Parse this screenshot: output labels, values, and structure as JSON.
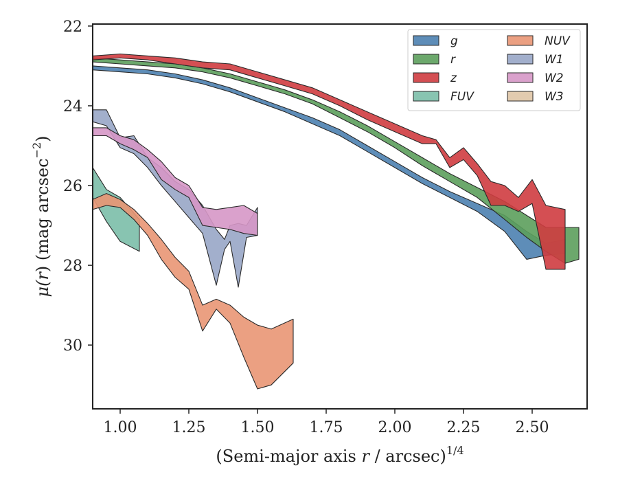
{
  "chart_data": {
    "type": "area",
    "xlabel": "(Semi-major axis r / arcsec)^{1/4}",
    "xlabel_parts": {
      "pre": "(Semi-major axis ",
      "var": "r",
      "post": " / arcsec)",
      "sup": "1/4"
    },
    "ylabel": "μ(r) (mag arcsec^{−2})",
    "ylabel_parts": {
      "mu": "μ(",
      "var": "r",
      "mid": ") (mag arcsec",
      "sup": "−2",
      "end": ")"
    },
    "xlim": [
      0.9,
      2.7
    ],
    "ylim": [
      31.6,
      21.95
    ],
    "y_inverted": true,
    "grid": false,
    "legend_position": "top-right",
    "legend_columns": 2,
    "x_ticks": [
      {
        "value": 1.0,
        "label": "1.00"
      },
      {
        "value": 1.25,
        "label": "1.25"
      },
      {
        "value": 1.5,
        "label": "1.50"
      },
      {
        "value": 1.75,
        "label": "1.75"
      },
      {
        "value": 2.0,
        "label": "2.00"
      },
      {
        "value": 2.25,
        "label": "2.25"
      },
      {
        "value": 2.5,
        "label": "2.50"
      }
    ],
    "y_ticks": [
      {
        "value": 22,
        "label": "22"
      },
      {
        "value": 24,
        "label": "24"
      },
      {
        "value": 26,
        "label": "26"
      },
      {
        "value": 28,
        "label": "28"
      },
      {
        "value": 30,
        "label": "30"
      }
    ],
    "series": [
      {
        "name": "g",
        "color": "#4c81b0",
        "x": [
          0.9,
          1.0,
          1.1,
          1.2,
          1.3,
          1.4,
          1.5,
          1.6,
          1.7,
          1.8,
          1.9,
          2.0,
          2.1,
          2.2,
          2.3,
          2.4,
          2.48,
          2.55,
          2.62
        ],
        "top": [
          23.0,
          23.05,
          23.1,
          23.2,
          23.35,
          23.55,
          23.8,
          24.05,
          24.3,
          24.6,
          25.0,
          25.4,
          25.8,
          26.15,
          26.45,
          26.75,
          27.15,
          27.45,
          27.35
        ],
        "bottom": [
          23.1,
          23.15,
          23.2,
          23.3,
          23.45,
          23.65,
          23.9,
          24.15,
          24.45,
          24.75,
          25.15,
          25.55,
          25.95,
          26.3,
          26.65,
          27.15,
          27.85,
          27.75,
          27.7
        ]
      },
      {
        "name": "r",
        "color": "#5c9e5c",
        "x": [
          0.9,
          1.0,
          1.1,
          1.2,
          1.3,
          1.4,
          1.5,
          1.6,
          1.7,
          1.8,
          1.9,
          2.0,
          2.1,
          2.2,
          2.3,
          2.4,
          2.48,
          2.55,
          2.62,
          2.67
        ],
        "top": [
          22.8,
          22.85,
          22.9,
          22.95,
          23.05,
          23.2,
          23.4,
          23.6,
          23.85,
          24.15,
          24.5,
          24.9,
          25.3,
          25.7,
          26.05,
          26.4,
          26.75,
          27.05,
          27.05,
          27.05
        ],
        "bottom": [
          22.9,
          22.95,
          23.0,
          23.05,
          23.15,
          23.3,
          23.5,
          23.7,
          23.95,
          24.3,
          24.65,
          25.05,
          25.5,
          25.9,
          26.3,
          26.85,
          27.3,
          27.65,
          27.95,
          27.85
        ]
      },
      {
        "name": "z",
        "color": "#cf3c40",
        "x": [
          0.9,
          1.0,
          1.1,
          1.2,
          1.3,
          1.4,
          1.5,
          1.6,
          1.7,
          1.8,
          1.9,
          2.0,
          2.1,
          2.15,
          2.2,
          2.25,
          2.3,
          2.35,
          2.4,
          2.45,
          2.5,
          2.55,
          2.62
        ],
        "top": [
          22.75,
          22.7,
          22.75,
          22.8,
          22.9,
          22.95,
          23.15,
          23.35,
          23.55,
          23.85,
          24.15,
          24.45,
          24.75,
          24.85,
          25.3,
          25.05,
          25.45,
          25.9,
          26.0,
          26.3,
          25.85,
          26.5,
          26.6
        ],
        "bottom": [
          22.85,
          22.8,
          22.85,
          22.95,
          23.05,
          23.1,
          23.3,
          23.5,
          23.7,
          24.0,
          24.35,
          24.65,
          24.95,
          24.95,
          25.55,
          25.35,
          25.75,
          26.5,
          26.5,
          26.65,
          26.45,
          28.1,
          28.1
        ]
      },
      {
        "name": "FUV",
        "color": "#7bbea9",
        "x": [
          0.9,
          0.95,
          1.0,
          1.07
        ],
        "top": [
          25.55,
          26.1,
          26.3,
          26.85
        ],
        "bottom": [
          26.3,
          26.9,
          27.4,
          27.65
        ]
      },
      {
        "name": "NUV",
        "color": "#e99674",
        "x": [
          0.9,
          0.95,
          1.0,
          1.05,
          1.1,
          1.15,
          1.2,
          1.25,
          1.3,
          1.35,
          1.4,
          1.45,
          1.5,
          1.55,
          1.63
        ],
        "top": [
          26.35,
          26.2,
          26.35,
          26.6,
          26.95,
          27.35,
          27.8,
          28.15,
          29.0,
          28.85,
          29.0,
          29.3,
          29.5,
          29.6,
          29.35
        ],
        "bottom": [
          26.6,
          26.5,
          26.55,
          26.85,
          27.25,
          27.85,
          28.3,
          28.6,
          29.65,
          29.1,
          29.45,
          30.3,
          31.1,
          31.0,
          30.45
        ]
      },
      {
        "name": "W1",
        "color": "#98a6c7",
        "x": [
          0.9,
          0.95,
          1.0,
          1.05,
          1.1,
          1.15,
          1.2,
          1.25,
          1.3,
          1.35,
          1.38,
          1.4,
          1.43,
          1.46,
          1.5
        ],
        "top": [
          24.1,
          24.1,
          24.8,
          24.75,
          25.3,
          25.55,
          25.9,
          26.1,
          26.5,
          27.1,
          27.35,
          27.0,
          26.95,
          27.0,
          26.55
        ],
        "bottom": [
          24.4,
          24.5,
          25.05,
          25.2,
          25.55,
          26.0,
          26.4,
          26.8,
          27.2,
          28.5,
          27.6,
          27.4,
          28.55,
          27.3,
          27.25
        ]
      },
      {
        "name": "W2",
        "color": "#d697c7",
        "x": [
          0.9,
          0.95,
          1.0,
          1.05,
          1.1,
          1.15,
          1.2,
          1.25,
          1.3,
          1.35,
          1.4,
          1.45,
          1.5
        ],
        "top": [
          24.55,
          24.55,
          24.75,
          24.85,
          25.1,
          25.4,
          25.8,
          26.0,
          26.55,
          26.6,
          26.55,
          26.5,
          26.7
        ],
        "bottom": [
          24.75,
          24.75,
          24.95,
          25.1,
          25.3,
          25.85,
          26.1,
          26.3,
          27.0,
          27.05,
          27.1,
          27.2,
          27.25
        ]
      },
      {
        "name": "W3",
        "color": "#dfc5a6",
        "x": [],
        "top": [],
        "bottom": []
      }
    ],
    "legend_order": [
      "g",
      "r",
      "z",
      "FUV",
      "NUV",
      "W1",
      "W2",
      "W3"
    ]
  }
}
